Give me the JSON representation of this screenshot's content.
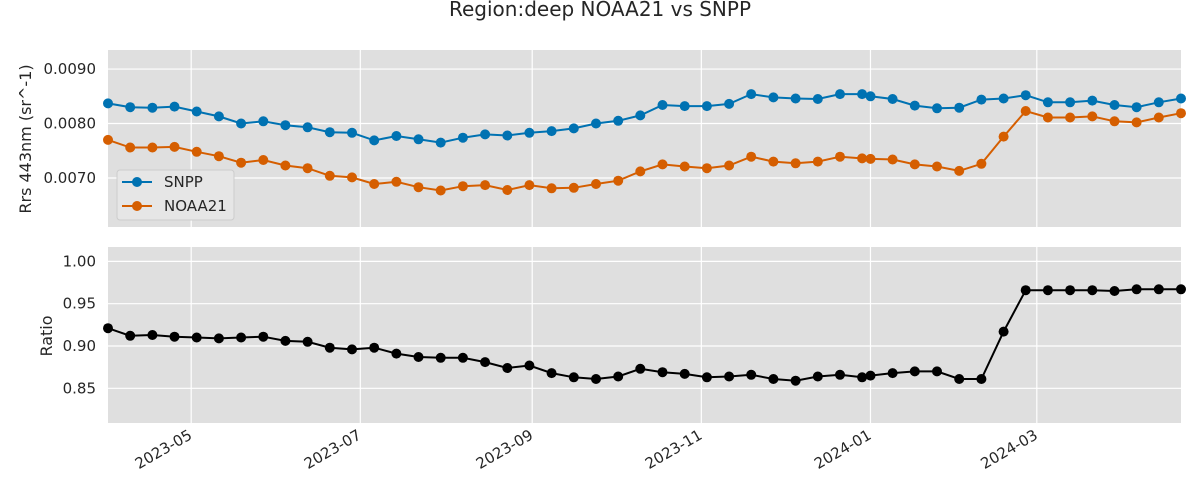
{
  "chart_data": {
    "title": "Region:deep NOAA21 vs SNPP",
    "x_dates": [
      "2023-04-01",
      "2023-04-09",
      "2023-04-17",
      "2023-04-25",
      "2023-05-03",
      "2023-05-11",
      "2023-05-19",
      "2023-05-27",
      "2023-06-04",
      "2023-06-12",
      "2023-06-20",
      "2023-06-28",
      "2023-07-06",
      "2023-07-14",
      "2023-07-22",
      "2023-07-30",
      "2023-08-07",
      "2023-08-15",
      "2023-08-23",
      "2023-08-31",
      "2023-09-08",
      "2023-09-16",
      "2023-09-24",
      "2023-10-02",
      "2023-10-10",
      "2023-10-18",
      "2023-10-26",
      "2023-11-03",
      "2023-11-11",
      "2023-11-19",
      "2023-11-27",
      "2023-12-05",
      "2023-12-13",
      "2023-12-21",
      "2023-12-29",
      "2024-01-01",
      "2024-01-09",
      "2024-01-17",
      "2024-01-25",
      "2024-02-02",
      "2024-02-10",
      "2024-02-18",
      "2024-02-26",
      "2024-03-05",
      "2024-03-13",
      "2024-03-21",
      "2024-03-29",
      "2024-04-06",
      "2024-04-14",
      "2024-04-22"
    ],
    "x_range": [
      "2023-04-01",
      "2024-04-22"
    ],
    "x_tick_labels": [
      "2023-05",
      "2023-07",
      "2023-09",
      "2023-11",
      "2024-01",
      "2024-03"
    ],
    "panels": [
      {
        "type": "line",
        "ylabel": "Rrs 443nm (sr^-1)",
        "ylim": [
          0.0061,
          0.00935
        ],
        "yticks": [
          0.007,
          0.008,
          0.009
        ],
        "ytick_labels": [
          "0.0070",
          "0.0080",
          "0.0090"
        ],
        "legend": "center-left",
        "grid": true,
        "series": [
          {
            "name": "SNPP",
            "color": "#0072b2",
            "values": [
              0.00837,
              0.0083,
              0.00829,
              0.00831,
              0.00822,
              0.00813,
              0.008,
              0.00804,
              0.00797,
              0.00793,
              0.00784,
              0.00783,
              0.00769,
              0.00777,
              0.00771,
              0.00765,
              0.00774,
              0.0078,
              0.00778,
              0.00783,
              0.00786,
              0.00791,
              0.008,
              0.00805,
              0.00815,
              0.00834,
              0.00832,
              0.00832,
              0.00836,
              0.00854,
              0.00848,
              0.00846,
              0.00845,
              0.00854,
              0.00854,
              0.0085,
              0.00845,
              0.00833,
              0.00828,
              0.00829,
              0.00844,
              0.00846,
              0.00852,
              0.00839,
              0.00839,
              0.00842,
              0.00834,
              0.0083,
              0.00839,
              0.00846
            ]
          },
          {
            "name": "NOAA21",
            "color": "#d55e00",
            "values": [
              0.0077,
              0.00756,
              0.00756,
              0.00757,
              0.00748,
              0.0074,
              0.00728,
              0.00733,
              0.00723,
              0.00718,
              0.00704,
              0.00701,
              0.00689,
              0.00693,
              0.00683,
              0.00677,
              0.00685,
              0.00687,
              0.00678,
              0.00687,
              0.00681,
              0.00682,
              0.00689,
              0.00695,
              0.00712,
              0.00725,
              0.00721,
              0.00718,
              0.00723,
              0.00739,
              0.0073,
              0.00727,
              0.0073,
              0.00739,
              0.00736,
              0.00735,
              0.00734,
              0.00725,
              0.00721,
              0.00713,
              0.00726,
              0.00776,
              0.00823,
              0.00811,
              0.00811,
              0.00813,
              0.00804,
              0.00802,
              0.00811,
              0.00819
            ]
          }
        ]
      },
      {
        "type": "line",
        "ylabel": "Ratio",
        "ylim": [
          0.809,
          1.017
        ],
        "yticks": [
          0.85,
          0.9,
          0.95,
          1.0
        ],
        "ytick_labels": [
          "0.85",
          "0.90",
          "0.95",
          "1.00"
        ],
        "grid": true,
        "series": [
          {
            "color": "#000000",
            "values": [
              0.921,
              0.912,
              0.913,
              0.911,
              0.91,
              0.909,
              0.91,
              0.911,
              0.906,
              0.905,
              0.898,
              0.896,
              0.898,
              0.891,
              0.887,
              0.886,
              0.886,
              0.881,
              0.874,
              0.877,
              0.868,
              0.863,
              0.861,
              0.864,
              0.873,
              0.869,
              0.867,
              0.863,
              0.864,
              0.866,
              0.861,
              0.859,
              0.864,
              0.866,
              0.863,
              0.865,
              0.868,
              0.87,
              0.87,
              0.861,
              0.861,
              0.917,
              0.966,
              0.966,
              0.966,
              0.966,
              0.965,
              0.967,
              0.967,
              0.967
            ]
          }
        ]
      }
    ]
  }
}
